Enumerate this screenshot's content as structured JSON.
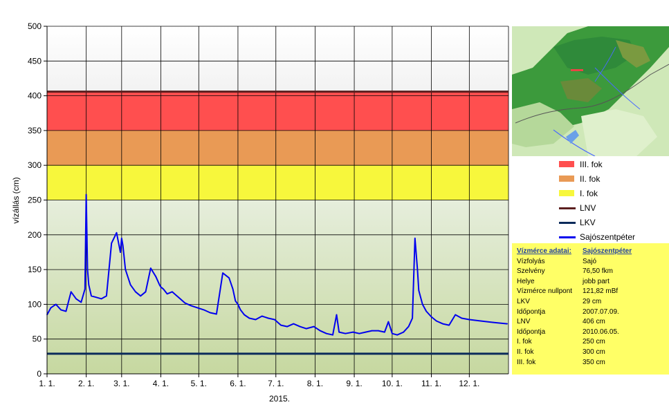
{
  "chart_data": {
    "type": "line",
    "ylabel": "vízállás (cm)",
    "xlabel": "2015.",
    "ylim": [
      0,
      500
    ],
    "yticks": [
      0,
      50,
      100,
      150,
      200,
      250,
      300,
      350,
      400,
      450,
      500
    ],
    "x_tick_labels": [
      "1. 1.",
      "2. 1.",
      "3. 1.",
      "4. 1.",
      "5. 1.",
      "6. 1.",
      "7. 1.",
      "8. 1.",
      "9. 1.",
      "10. 1.",
      "11. 1.",
      "12. 1."
    ],
    "grid": true,
    "bands": [
      {
        "name": "III. fok",
        "from": 350,
        "to": 406,
        "color": "#ff4f4f"
      },
      {
        "name": "II. fok",
        "from": 300,
        "to": 350,
        "color": "#e99a55"
      },
      {
        "name": "I. fok",
        "from": 250,
        "to": 300,
        "color": "#f7f73c"
      }
    ],
    "lines": [
      {
        "name": "LNV",
        "value": 406,
        "color": "#5a1e1e"
      },
      {
        "name": "LKV",
        "value": 29,
        "color": "#0a2a5a"
      }
    ],
    "series": [
      {
        "name": "Sajószentpéter",
        "color": "#0000ee",
        "x": [
          "2015-01-01",
          "2015-01-04",
          "2015-01-08",
          "2015-01-12",
          "2015-01-16",
          "2015-01-20",
          "2015-01-24",
          "2015-01-28",
          "2015-01-31",
          "2015-02-01",
          "2015-02-02",
          "2015-02-03",
          "2015-02-05",
          "2015-02-09",
          "2015-02-13",
          "2015-02-17",
          "2015-02-21",
          "2015-02-25",
          "2015-02-28",
          "2015-03-01",
          "2015-03-02",
          "2015-03-04",
          "2015-03-08",
          "2015-03-12",
          "2015-03-16",
          "2015-03-20",
          "2015-03-24",
          "2015-03-28",
          "2015-03-31",
          "2015-04-01",
          "2015-04-03",
          "2015-04-06",
          "2015-04-10",
          "2015-04-15",
          "2015-04-20",
          "2015-04-25",
          "2015-04-30",
          "2015-05-05",
          "2015-05-10",
          "2015-05-15",
          "2015-05-20",
          "2015-05-25",
          "2015-05-28",
          "2015-05-30",
          "2015-06-01",
          "2015-06-03",
          "2015-06-06",
          "2015-06-10",
          "2015-06-15",
          "2015-06-20",
          "2015-06-25",
          "2015-06-30",
          "2015-07-05",
          "2015-07-10",
          "2015-07-15",
          "2015-07-20",
          "2015-07-25",
          "2015-07-31",
          "2015-08-05",
          "2015-08-10",
          "2015-08-15",
          "2015-08-18",
          "2015-08-20",
          "2015-08-25",
          "2015-08-31",
          "2015-09-05",
          "2015-09-10",
          "2015-09-15",
          "2015-09-20",
          "2015-09-25",
          "2015-09-28",
          "2015-10-01",
          "2015-10-05",
          "2015-10-10",
          "2015-10-14",
          "2015-10-17",
          "2015-10-19",
          "2015-10-21",
          "2015-10-22",
          "2015-10-25",
          "2015-10-28",
          "2015-11-01",
          "2015-11-05",
          "2015-11-10",
          "2015-11-15",
          "2015-11-20",
          "2015-11-25",
          "2015-12-01",
          "2015-12-10",
          "2015-12-20",
          "2015-12-31"
        ],
        "y": [
          85,
          95,
          100,
          92,
          90,
          118,
          108,
          103,
          122,
          258,
          150,
          128,
          112,
          110,
          108,
          112,
          188,
          203,
          175,
          195,
          185,
          150,
          128,
          118,
          112,
          118,
          152,
          140,
          128,
          125,
          122,
          115,
          118,
          110,
          102,
          98,
          95,
          92,
          88,
          86,
          145,
          138,
          122,
          105,
          100,
          92,
          85,
          80,
          78,
          83,
          80,
          78,
          70,
          68,
          72,
          68,
          65,
          68,
          62,
          58,
          56,
          85,
          60,
          58,
          60,
          58,
          60,
          62,
          62,
          60,
          75,
          58,
          56,
          60,
          68,
          80,
          195,
          150,
          120,
          100,
          90,
          82,
          76,
          72,
          70,
          85,
          80,
          78,
          76,
          74,
          72
        ]
      }
    ]
  },
  "legend": [
    {
      "label": "III. fok",
      "type": "box",
      "color": "#ff4f4f"
    },
    {
      "label": "II. fok",
      "type": "box",
      "color": "#e99a55"
    },
    {
      "label": "I. fok",
      "type": "box",
      "color": "#f7f73c"
    },
    {
      "label": "LNV",
      "type": "line",
      "color": "#5a1e1e"
    },
    {
      "label": "LKV",
      "type": "line",
      "color": "#0a2a5a"
    },
    {
      "label": "Sajószentpéter",
      "type": "line",
      "color": "#0000ee"
    }
  ],
  "info": {
    "title_key": "Vízmérce adatai:",
    "title_value": "Sajószentpéter",
    "rows": [
      {
        "k": "Vízfolyás",
        "v": "Sajó"
      },
      {
        "k": "Szelvény",
        "v": "76,50 fkm"
      },
      {
        "k": "Helye",
        "v": "jobb part"
      },
      {
        "k": "Vízmérce nullpont",
        "v": "121,82 mBf"
      },
      {
        "k": "LKV",
        "v": "29 cm"
      },
      {
        "k": "Időpontja",
        "v": "2007.07.09."
      },
      {
        "k": "LNV",
        "v": "406 cm"
      },
      {
        "k": "Időpontja",
        "v": "2010.06.05."
      },
      {
        "k": "I. fok",
        "v": "250 cm"
      },
      {
        "k": "II. fok",
        "v": "300 cm"
      },
      {
        "k": "III. fok",
        "v": "350 cm"
      }
    ]
  }
}
